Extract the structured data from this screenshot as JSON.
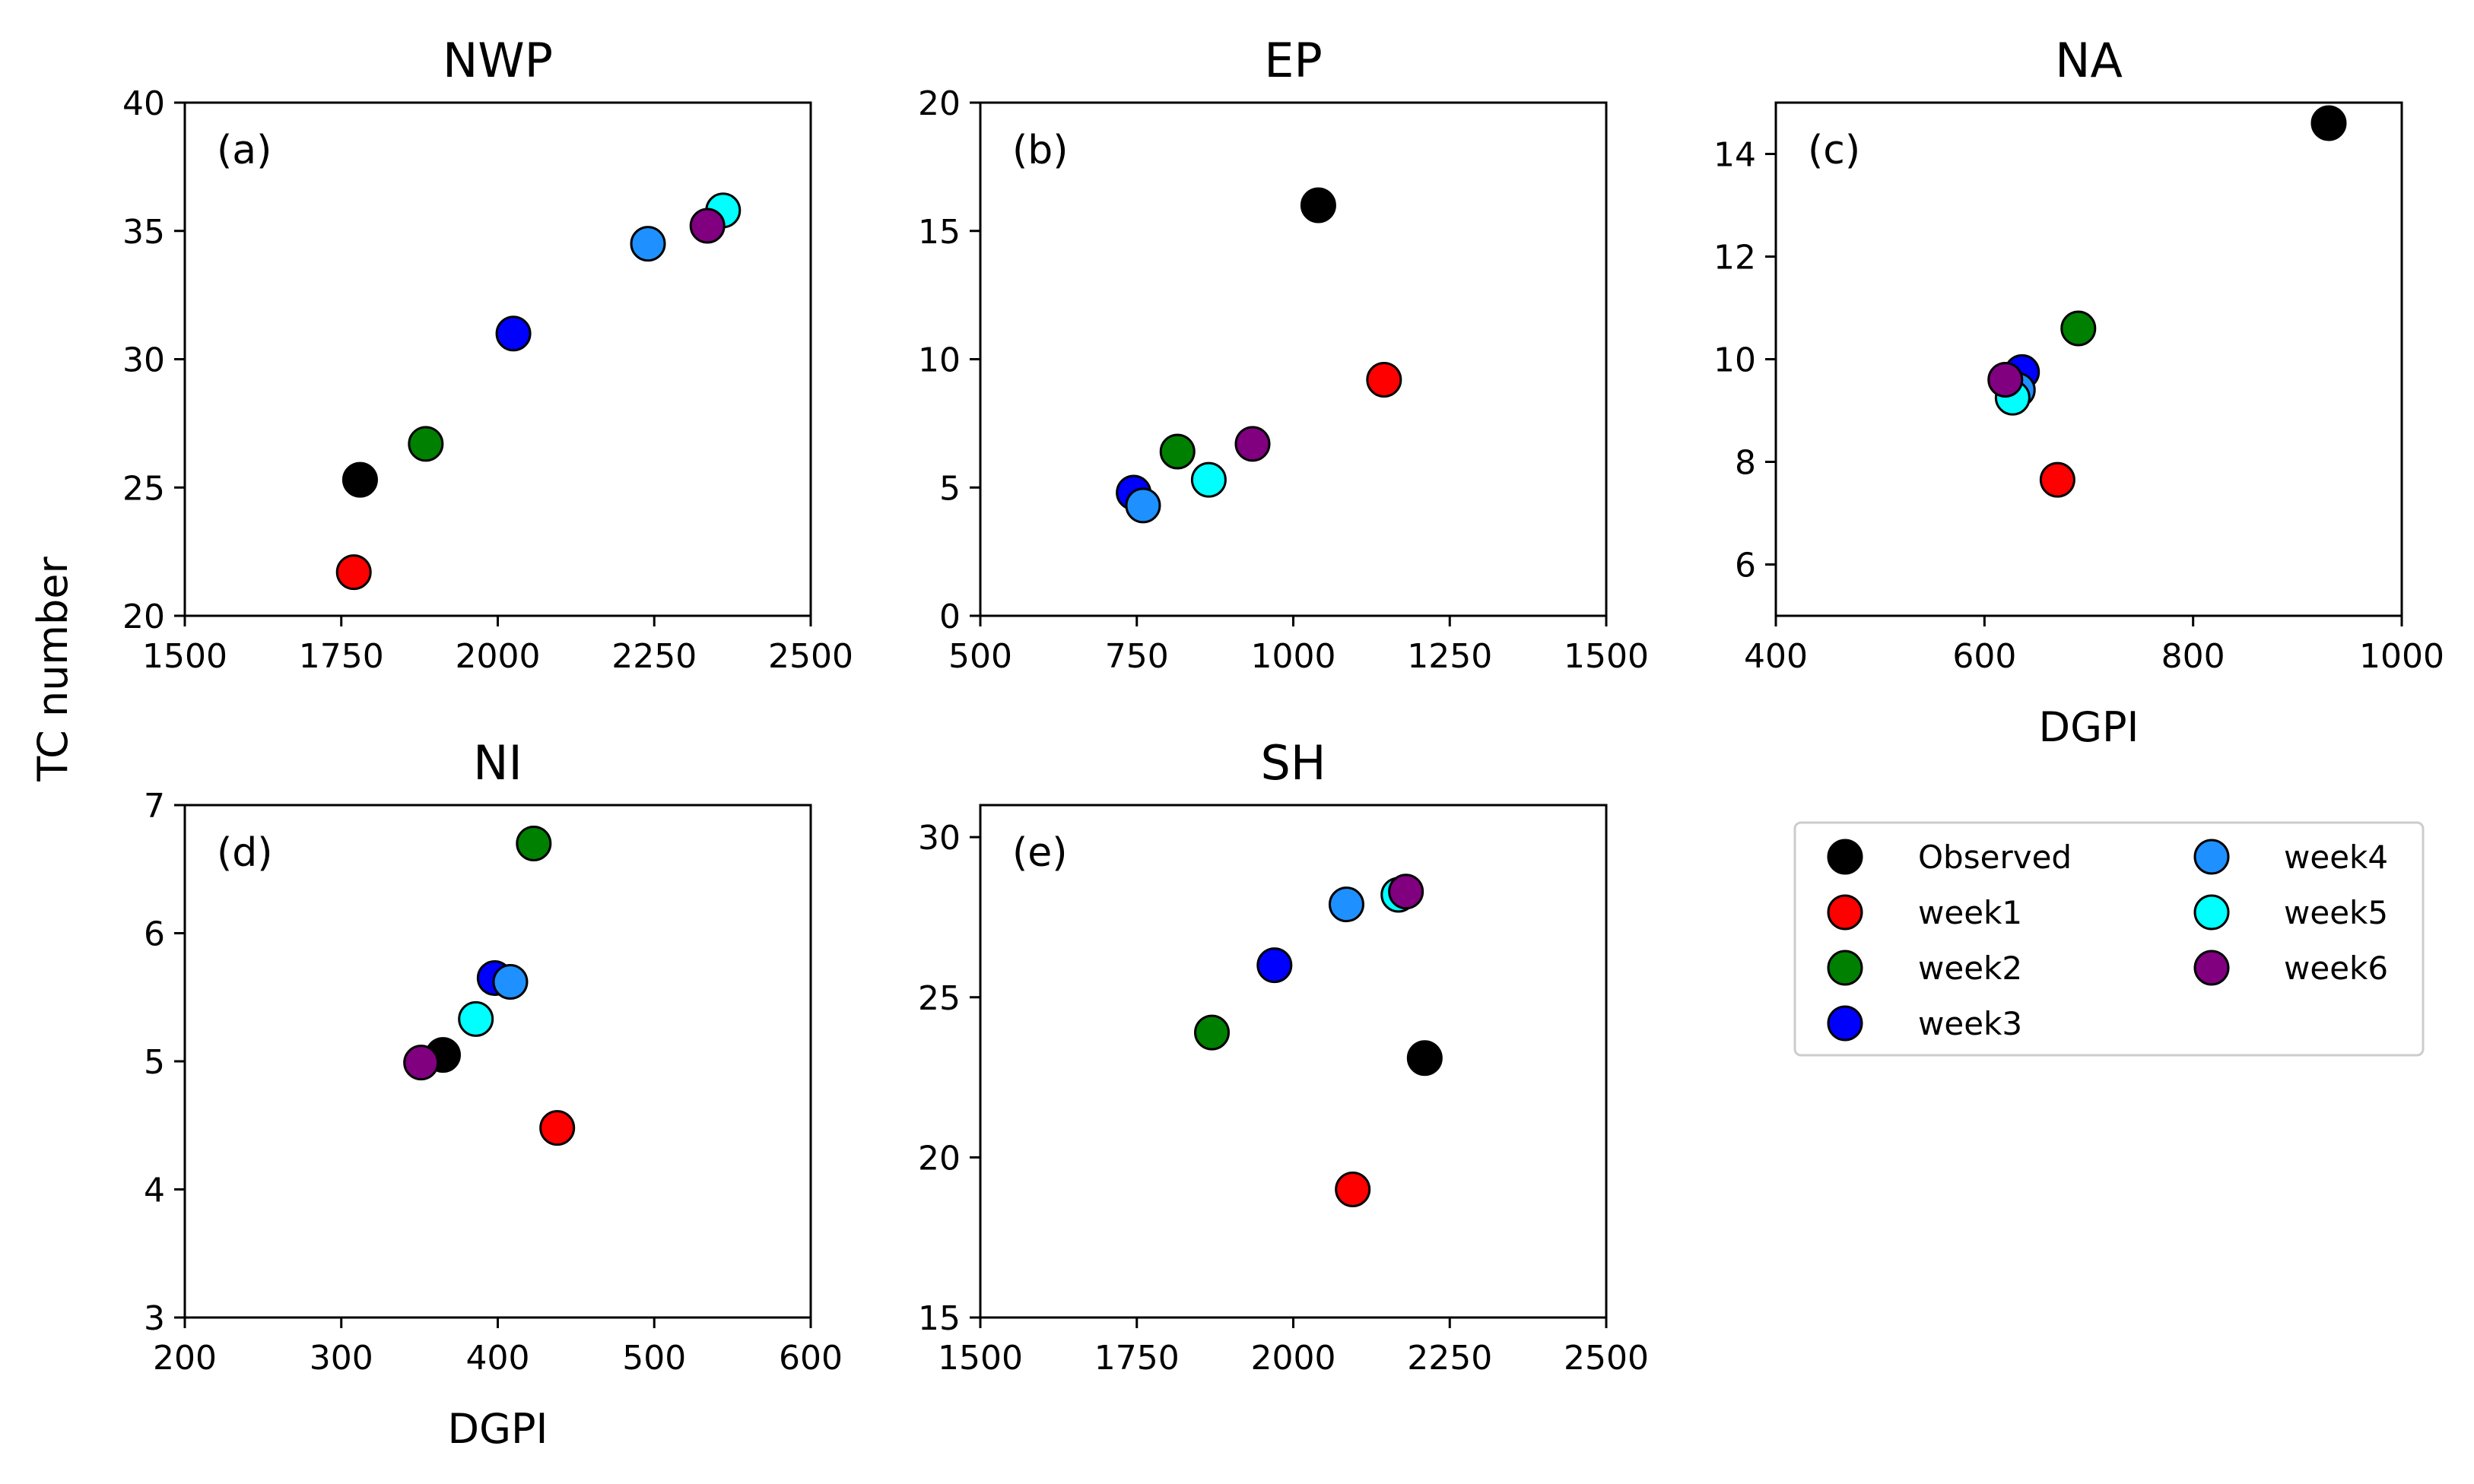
{
  "figure": {
    "ylabel": "TC number",
    "xlabel": "DGPI"
  },
  "legend": {
    "placement": "right of bottom row",
    "entries": [
      {
        "label": "Observed",
        "color": "#000000"
      },
      {
        "label": "week1",
        "color": "#ff0000"
      },
      {
        "label": "week2",
        "color": "#008000"
      },
      {
        "label": "week3",
        "color": "#0000ff"
      },
      {
        "label": "week4",
        "color": "#1e90ff"
      },
      {
        "label": "week5",
        "color": "#00ffff"
      },
      {
        "label": "week6",
        "color": "#800080"
      }
    ]
  },
  "chart_data": [
    {
      "type": "scatter",
      "title": "NWP",
      "panel_label": "(a)",
      "xlabel": "",
      "ylabel": "",
      "xlim": [
        1500,
        2500
      ],
      "ylim": [
        20,
        40
      ],
      "xticks": [
        1500,
        1750,
        2000,
        2250,
        2500
      ],
      "yticks": [
        20,
        25,
        30,
        35,
        40
      ],
      "points": [
        {
          "series": "Observed",
          "x": 1780,
          "y": 25.3
        },
        {
          "series": "week1",
          "x": 1770,
          "y": 21.7
        },
        {
          "series": "week2",
          "x": 1885,
          "y": 26.7
        },
        {
          "series": "week3",
          "x": 2025,
          "y": 31.0
        },
        {
          "series": "week4",
          "x": 2240,
          "y": 34.5
        },
        {
          "series": "week5",
          "x": 2360,
          "y": 35.8
        },
        {
          "series": "week6",
          "x": 2335,
          "y": 35.2
        }
      ]
    },
    {
      "type": "scatter",
      "title": "EP",
      "panel_label": "(b)",
      "xlabel": "",
      "ylabel": "",
      "xlim": [
        500,
        1500
      ],
      "ylim": [
        0,
        20
      ],
      "xticks": [
        500,
        750,
        1000,
        1250,
        1500
      ],
      "yticks": [
        0,
        5,
        10,
        15,
        20
      ],
      "points": [
        {
          "series": "Observed",
          "x": 1040,
          "y": 16.0
        },
        {
          "series": "week1",
          "x": 1145,
          "y": 9.2
        },
        {
          "series": "week2",
          "x": 815,
          "y": 6.4
        },
        {
          "series": "week3",
          "x": 745,
          "y": 4.8
        },
        {
          "series": "week4",
          "x": 760,
          "y": 4.3
        },
        {
          "series": "week5",
          "x": 865,
          "y": 5.3
        },
        {
          "series": "week6",
          "x": 935,
          "y": 6.7
        }
      ]
    },
    {
      "type": "scatter",
      "title": "NA",
      "panel_label": "(c)",
      "xlabel": "DGPI",
      "ylabel": "",
      "xlim": [
        400,
        1000
      ],
      "ylim": [
        5,
        15
      ],
      "xticks": [
        400,
        600,
        800,
        1000
      ],
      "yticks": [
        6,
        8,
        10,
        12,
        14
      ],
      "points": [
        {
          "series": "Observed",
          "x": 930,
          "y": 14.6
        },
        {
          "series": "week1",
          "x": 670,
          "y": 7.65
        },
        {
          "series": "week2",
          "x": 690,
          "y": 10.6
        },
        {
          "series": "week3",
          "x": 636,
          "y": 9.75
        },
        {
          "series": "week4",
          "x": 632,
          "y": 9.4
        },
        {
          "series": "week5",
          "x": 627,
          "y": 9.25
        },
        {
          "series": "week6",
          "x": 620,
          "y": 9.6
        }
      ]
    },
    {
      "type": "scatter",
      "title": "NI",
      "panel_label": "(d)",
      "xlabel": "DGPI",
      "ylabel": "",
      "xlim": [
        200,
        600
      ],
      "ylim": [
        3,
        7
      ],
      "xticks": [
        200,
        300,
        400,
        500,
        600
      ],
      "yticks": [
        3,
        4,
        5,
        6,
        7
      ],
      "points": [
        {
          "series": "Observed",
          "x": 365,
          "y": 5.05
        },
        {
          "series": "week1",
          "x": 438,
          "y": 4.48
        },
        {
          "series": "week2",
          "x": 423,
          "y": 6.7
        },
        {
          "series": "week3",
          "x": 398,
          "y": 5.65
        },
        {
          "series": "week4",
          "x": 408,
          "y": 5.62
        },
        {
          "series": "week5",
          "x": 386,
          "y": 5.33
        },
        {
          "series": "week6",
          "x": 351,
          "y": 4.99
        }
      ]
    },
    {
      "type": "scatter",
      "title": "SH",
      "panel_label": "(e)",
      "xlabel": "",
      "ylabel": "",
      "xlim": [
        1500,
        2500
      ],
      "ylim": [
        15,
        31
      ],
      "xticks": [
        1500,
        1750,
        2000,
        2250,
        2500
      ],
      "yticks": [
        15,
        20,
        25,
        30
      ],
      "points": [
        {
          "series": "Observed",
          "x": 2210,
          "y": 23.1
        },
        {
          "series": "week1",
          "x": 2095,
          "y": 19.0
        },
        {
          "series": "week2",
          "x": 1870,
          "y": 23.9
        },
        {
          "series": "week3",
          "x": 1970,
          "y": 26.0
        },
        {
          "series": "week4",
          "x": 2085,
          "y": 27.9
        },
        {
          "series": "week5",
          "x": 2168,
          "y": 28.2
        },
        {
          "series": "week6",
          "x": 2180,
          "y": 28.3
        }
      ]
    }
  ]
}
